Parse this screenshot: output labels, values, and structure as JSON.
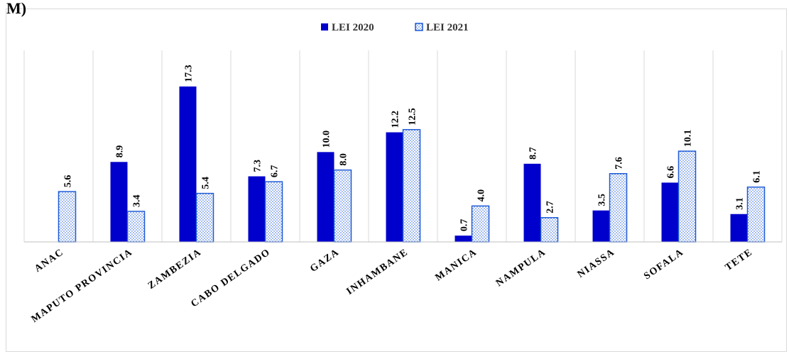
{
  "cut_title": "M)",
  "chart_data": {
    "type": "bar",
    "categories": [
      "ANAC",
      "MAPUTO PROVINCIA",
      "ZAMBEZIA",
      "CABO DELGADO",
      "GAZA",
      "INHAMBANE",
      "MANICA",
      "NAMPULA",
      "NIASSA",
      "SOFALA",
      "TETE"
    ],
    "series": [
      {
        "name": "LEI 2020",
        "values": [
          null,
          8.9,
          17.3,
          7.3,
          10.0,
          12.2,
          0.7,
          8.7,
          3.5,
          6.6,
          3.1
        ],
        "labels": [
          "",
          "8.9",
          "17.3",
          "7.3",
          "10.0",
          "12.2",
          "0.7",
          "8.7",
          "3.5",
          "6.6",
          "3.1"
        ],
        "color": "#0000CC",
        "style": "solid"
      },
      {
        "name": "LEI 2021",
        "values": [
          5.6,
          3.4,
          5.4,
          6.7,
          8.0,
          12.5,
          4.0,
          2.7,
          7.6,
          10.1,
          6.1
        ],
        "labels": [
          "5.6",
          "3.4",
          "5.4",
          "6.7",
          "8.0",
          "12.5",
          "4.0",
          "2.7",
          "7.6",
          "10.1",
          "6.1"
        ],
        "color": "#1F5BD6",
        "style": "dotted"
      }
    ],
    "ylim": [
      0,
      18
    ],
    "grid": "vertical-separators",
    "legend": "top-center",
    "title": "",
    "xlabel": "",
    "ylabel": ""
  }
}
